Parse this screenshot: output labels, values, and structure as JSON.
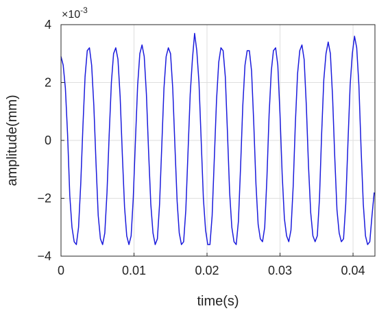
{
  "chart_data": {
    "type": "line",
    "title": "",
    "xlabel": "time(s)",
    "ylabel": "amplitude(mm)",
    "y_multiplier_label": "×10",
    "y_multiplier_exponent": "-3",
    "xlim": [
      0,
      0.043
    ],
    "ylim": [
      -4,
      4
    ],
    "x_ticks": [
      0,
      0.01,
      0.02,
      0.03,
      0.04
    ],
    "x_tick_labels": [
      "0",
      "0.01",
      "0.02",
      "0.03",
      "0.04"
    ],
    "y_ticks": [
      -4,
      -2,
      0,
      2,
      4
    ],
    "y_tick_labels": [
      "−4",
      "−2",
      "0",
      "2",
      "4"
    ],
    "grid": true,
    "series": [
      {
        "color": "#1a1adc",
        "x": [
          0,
          0.0003,
          0.0006,
          0.0009,
          0.0012,
          0.0015,
          0.0018,
          0.0021,
          0.0024,
          0.0027,
          0.003,
          0.0033,
          0.0036,
          0.0039,
          0.0042,
          0.0045,
          0.0048,
          0.0051,
          0.0054,
          0.0057,
          0.006,
          0.0063,
          0.0066,
          0.0069,
          0.0072,
          0.0075,
          0.0078,
          0.0081,
          0.0084,
          0.0087,
          0.009,
          0.0093,
          0.0096,
          0.0099,
          0.0102,
          0.0105,
          0.0108,
          0.0111,
          0.0114,
          0.0117,
          0.012,
          0.0123,
          0.0126,
          0.0129,
          0.0132,
          0.0135,
          0.0138,
          0.0141,
          0.0144,
          0.0147,
          0.015,
          0.0153,
          0.0156,
          0.0159,
          0.0162,
          0.0165,
          0.0168,
          0.0171,
          0.0174,
          0.0177,
          0.018,
          0.0183,
          0.0186,
          0.0189,
          0.0192,
          0.0195,
          0.0198,
          0.0201,
          0.0204,
          0.0207,
          0.021,
          0.0213,
          0.0216,
          0.0219,
          0.0222,
          0.0225,
          0.0228,
          0.0231,
          0.0234,
          0.0237,
          0.024,
          0.0243,
          0.0246,
          0.0249,
          0.0252,
          0.0255,
          0.0258,
          0.0261,
          0.0264,
          0.0267,
          0.027,
          0.0273,
          0.0276,
          0.0279,
          0.0282,
          0.0285,
          0.0288,
          0.0291,
          0.0294,
          0.0297,
          0.03,
          0.0303,
          0.0306,
          0.0309,
          0.0312,
          0.0315,
          0.0318,
          0.0321,
          0.0324,
          0.0327,
          0.033,
          0.0333,
          0.0336,
          0.0339,
          0.0342,
          0.0345,
          0.0348,
          0.0351,
          0.0354,
          0.0357,
          0.036,
          0.0363,
          0.0366,
          0.0369,
          0.0372,
          0.0375,
          0.0378,
          0.0381,
          0.0384,
          0.0387,
          0.039,
          0.0393,
          0.0396,
          0.0399,
          0.0402,
          0.0405,
          0.0408,
          0.0411,
          0.0414,
          0.0417,
          0.042,
          0.0423,
          0.0426,
          0.0429
        ],
        "y": [
          2.9,
          2.6,
          1.8,
          0.2,
          -1.9,
          -3.0,
          -3.5,
          -3.6,
          -3.0,
          -1.5,
          0.5,
          2.2,
          3.1,
          3.2,
          2.6,
          1.2,
          -0.8,
          -2.6,
          -3.4,
          -3.6,
          -3.2,
          -1.8,
          0.2,
          2.0,
          3.0,
          3.2,
          2.8,
          1.5,
          -0.5,
          -2.3,
          -3.3,
          -3.6,
          -3.3,
          -2.0,
          0.0,
          1.9,
          3.0,
          3.3,
          2.9,
          1.6,
          -0.4,
          -2.2,
          -3.2,
          -3.6,
          -3.4,
          -2.2,
          -0.2,
          1.8,
          2.9,
          3.2,
          3.0,
          1.8,
          -0.2,
          -2.1,
          -3.2,
          -3.6,
          -3.5,
          -2.4,
          -0.4,
          1.6,
          2.8,
          3.7,
          3.1,
          2.0,
          0.0,
          -2.0,
          -3.1,
          -3.6,
          -3.6,
          -2.6,
          -0.6,
          1.4,
          2.7,
          3.2,
          3.1,
          2.2,
          0.3,
          -1.8,
          -3.0,
          -3.5,
          -3.6,
          -2.8,
          -0.9,
          1.2,
          2.6,
          3.1,
          3.1,
          2.4,
          0.6,
          -1.5,
          -2.9,
          -3.4,
          -3.5,
          -3.0,
          -1.3,
          0.9,
          2.4,
          3.1,
          3.2,
          2.6,
          0.9,
          -1.2,
          -2.7,
          -3.3,
          -3.5,
          -3.1,
          -1.6,
          0.6,
          2.3,
          3.1,
          3.3,
          2.8,
          1.2,
          -0.9,
          -2.5,
          -3.3,
          -3.5,
          -3.3,
          -2.0,
          0.2,
          2.1,
          3.0,
          3.4,
          3.0,
          1.5,
          -0.6,
          -2.4,
          -3.2,
          -3.5,
          -3.4,
          -2.2,
          -0.1,
          1.9,
          3.0,
          3.6,
          3.2,
          1.9,
          -0.3,
          -2.2,
          -3.3,
          -3.6,
          -3.5,
          -2.6,
          -1.8
        ]
      }
    ]
  }
}
